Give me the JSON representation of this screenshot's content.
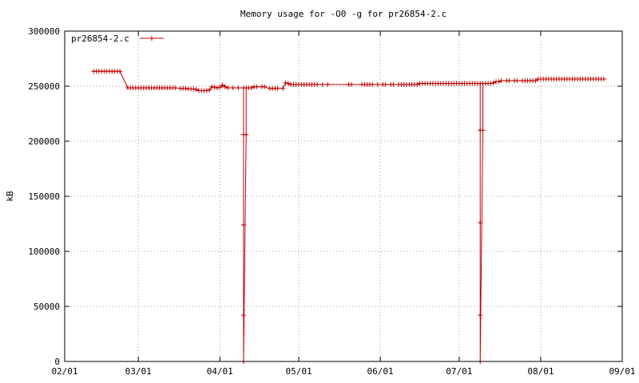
{
  "chart_data": {
    "type": "line",
    "title": "Memory usage for -O0 -g for pr26854-2.c",
    "xlabel": "",
    "ylabel": "kB",
    "xlim": [
      "02/01",
      "09/01"
    ],
    "ylim": [
      0,
      300000
    ],
    "x_is_date": true,
    "x_ticks": [
      "02/01",
      "03/01",
      "04/01",
      "05/01",
      "06/01",
      "07/01",
      "08/01",
      "09/01"
    ],
    "y_ticks": [
      0,
      50000,
      100000,
      150000,
      200000,
      250000,
      300000
    ],
    "grid": true,
    "legend_position": "top-left",
    "colors": {
      "series": "#c00000"
    },
    "series": [
      {
        "name": "pr26854-2.c",
        "points": [
          [
            "02/12",
            263500
          ],
          [
            "02/13",
            263500
          ],
          [
            "02/14",
            263500
          ],
          [
            "02/15",
            263500
          ],
          [
            "02/16",
            263500
          ],
          [
            "02/17",
            263500
          ],
          [
            "02/18",
            263500
          ],
          [
            "02/19",
            263500
          ],
          [
            "02/20",
            263500
          ],
          [
            "02/21",
            263500
          ],
          [
            "02/22",
            263500
          ],
          [
            "02/25",
            248500
          ],
          [
            "02/26",
            248500
          ],
          [
            "02/27",
            248500
          ],
          [
            "02/28",
            248500
          ],
          [
            "03/01",
            248500
          ],
          [
            "03/02",
            248500
          ],
          [
            "03/03",
            248500
          ],
          [
            "03/04",
            248500
          ],
          [
            "03/05",
            248500
          ],
          [
            "03/06",
            248500
          ],
          [
            "03/07",
            248500
          ],
          [
            "03/08",
            248500
          ],
          [
            "03/09",
            248500
          ],
          [
            "03/10",
            248500
          ],
          [
            "03/11",
            248500
          ],
          [
            "03/12",
            248500
          ],
          [
            "03/13",
            248500
          ],
          [
            "03/14",
            248500
          ],
          [
            "03/15",
            248500
          ],
          [
            "03/17",
            248000
          ],
          [
            "03/18",
            248000
          ],
          [
            "03/19",
            248000
          ],
          [
            "03/20",
            247500
          ],
          [
            "03/21",
            247500
          ],
          [
            "03/22",
            247500
          ],
          [
            "03/23",
            247000
          ],
          [
            "03/24",
            246000
          ],
          [
            "03/25",
            246000
          ],
          [
            "03/26",
            246000
          ],
          [
            "03/27",
            246000
          ],
          [
            "03/28",
            246500
          ],
          [
            "03/29",
            249500
          ],
          [
            "03/30",
            249000
          ],
          [
            "03/31",
            248500
          ],
          [
            "04/01",
            249000
          ],
          [
            "04/02",
            251000
          ],
          [
            "04/03",
            249500
          ],
          [
            "04/04",
            248500
          ],
          [
            "04/06",
            248500
          ],
          [
            "04/08",
            248500
          ],
          [
            "04/10",
            248500
          ],
          [
            "04/10",
            206000
          ],
          [
            "04/10",
            124000
          ],
          [
            "04/10",
            42000
          ],
          [
            "04/10",
            0
          ],
          [
            "04/11",
            206000
          ],
          [
            "04/11",
            248500
          ],
          [
            "04/12",
            248500
          ],
          [
            "04/13",
            248500
          ],
          [
            "04/14",
            249500
          ],
          [
            "04/15",
            249500
          ],
          [
            "04/17",
            249500
          ],
          [
            "04/18",
            249500
          ],
          [
            "04/20",
            248000
          ],
          [
            "04/21",
            248000
          ],
          [
            "04/22",
            248000
          ],
          [
            "04/23",
            248000
          ],
          [
            "04/25",
            248000
          ],
          [
            "04/26",
            253000
          ],
          [
            "04/27",
            252500
          ],
          [
            "04/28",
            251500
          ],
          [
            "04/29",
            251500
          ],
          [
            "04/30",
            251500
          ],
          [
            "05/01",
            251500
          ],
          [
            "05/02",
            251500
          ],
          [
            "05/03",
            251500
          ],
          [
            "05/04",
            251500
          ],
          [
            "05/05",
            251500
          ],
          [
            "05/06",
            251500
          ],
          [
            "05/07",
            251500
          ],
          [
            "05/08",
            251500
          ],
          [
            "05/10",
            251500
          ],
          [
            "05/12",
            251500
          ],
          [
            "05/20",
            251500
          ],
          [
            "05/21",
            251500
          ],
          [
            "05/25",
            251500
          ],
          [
            "05/26",
            251500
          ],
          [
            "05/27",
            251500
          ],
          [
            "05/28",
            251500
          ],
          [
            "05/29",
            251500
          ],
          [
            "05/31",
            251500
          ],
          [
            "06/02",
            251500
          ],
          [
            "06/03",
            251500
          ],
          [
            "06/05",
            251500
          ],
          [
            "06/06",
            251500
          ],
          [
            "06/08",
            251500
          ],
          [
            "06/09",
            251500
          ],
          [
            "06/10",
            251500
          ],
          [
            "06/11",
            251500
          ],
          [
            "06/12",
            251500
          ],
          [
            "06/13",
            251500
          ],
          [
            "06/14",
            251500
          ],
          [
            "06/15",
            251500
          ],
          [
            "06/16",
            252500
          ],
          [
            "06/17",
            252500
          ],
          [
            "06/18",
            252500
          ],
          [
            "06/19",
            252500
          ],
          [
            "06/20",
            252500
          ],
          [
            "06/21",
            252500
          ],
          [
            "06/22",
            252500
          ],
          [
            "06/23",
            252500
          ],
          [
            "06/24",
            252500
          ],
          [
            "06/25",
            252500
          ],
          [
            "06/26",
            252500
          ],
          [
            "06/27",
            252500
          ],
          [
            "06/28",
            252500
          ],
          [
            "06/29",
            252500
          ],
          [
            "06/30",
            252500
          ],
          [
            "07/01",
            252500
          ],
          [
            "07/02",
            252500
          ],
          [
            "07/03",
            252500
          ],
          [
            "07/04",
            252500
          ],
          [
            "07/05",
            252500
          ],
          [
            "07/06",
            252500
          ],
          [
            "07/07",
            252500
          ],
          [
            "07/08",
            252500
          ],
          [
            "07/09",
            252500
          ],
          [
            "07/09",
            210000
          ],
          [
            "07/09",
            126000
          ],
          [
            "07/09",
            42000
          ],
          [
            "07/09",
            0
          ],
          [
            "07/10",
            210000
          ],
          [
            "07/10",
            252500
          ],
          [
            "07/11",
            252500
          ],
          [
            "07/12",
            252500
          ],
          [
            "07/13",
            252500
          ],
          [
            "07/14",
            253000
          ],
          [
            "07/15",
            254000
          ],
          [
            "07/16",
            254000
          ],
          [
            "07/17",
            255000
          ],
          [
            "07/19",
            255000
          ],
          [
            "07/20",
            255000
          ],
          [
            "07/22",
            255000
          ],
          [
            "07/23",
            255000
          ],
          [
            "07/25",
            255000
          ],
          [
            "07/26",
            255000
          ],
          [
            "07/27",
            255000
          ],
          [
            "07/28",
            255000
          ],
          [
            "07/29",
            255000
          ],
          [
            "07/30",
            255000
          ],
          [
            "07/31",
            256500
          ],
          [
            "08/01",
            256500
          ],
          [
            "08/02",
            256500
          ],
          [
            "08/03",
            256500
          ],
          [
            "08/04",
            256500
          ],
          [
            "08/05",
            256500
          ],
          [
            "08/06",
            256500
          ],
          [
            "08/07",
            256500
          ],
          [
            "08/08",
            256500
          ],
          [
            "08/09",
            256500
          ],
          [
            "08/10",
            256500
          ],
          [
            "08/11",
            256500
          ],
          [
            "08/12",
            256500
          ],
          [
            "08/13",
            256500
          ],
          [
            "08/14",
            256500
          ],
          [
            "08/15",
            256500
          ],
          [
            "08/16",
            256500
          ],
          [
            "08/17",
            256500
          ],
          [
            "08/18",
            256500
          ],
          [
            "08/19",
            256500
          ],
          [
            "08/20",
            256500
          ],
          [
            "08/21",
            256500
          ],
          [
            "08/22",
            256500
          ],
          [
            "08/23",
            256500
          ],
          [
            "08/24",
            256500
          ],
          [
            "08/25",
            256500
          ]
        ]
      }
    ]
  }
}
